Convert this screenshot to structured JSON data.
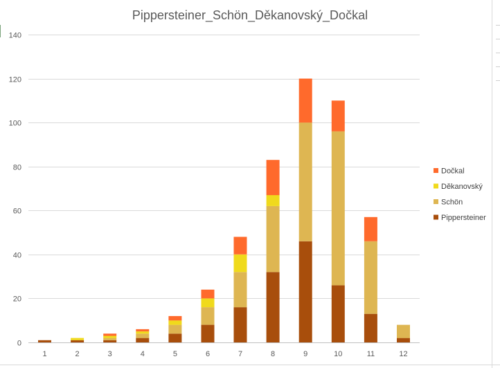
{
  "chart_data": {
    "type": "bar",
    "stacked": true,
    "title": "Pippersteiner_Schön_Děkanovský_Dočkal",
    "xlabel": "",
    "ylabel": "",
    "categories": [
      "1",
      "2",
      "3",
      "4",
      "5",
      "6",
      "7",
      "8",
      "9",
      "10",
      "11",
      "12"
    ],
    "y_ticks": [
      "0",
      "20",
      "40",
      "60",
      "80",
      "100",
      "120",
      "140"
    ],
    "ylim": [
      0,
      140
    ],
    "grid": true,
    "legend_position": "right",
    "series": [
      {
        "name": "Pippersteiner",
        "color": "#A84E0C",
        "values": [
          1,
          1,
          1,
          2,
          4,
          8,
          16,
          32,
          46,
          26,
          13,
          2
        ]
      },
      {
        "name": "Schön",
        "color": "#DEB652",
        "values": [
          0,
          0,
          1,
          2,
          4,
          8,
          16,
          30,
          54,
          70,
          33,
          6
        ]
      },
      {
        "name": "Děkanovský",
        "color": "#F0DA1C",
        "values": [
          0,
          1,
          1,
          1,
          2,
          4,
          8,
          5,
          0,
          0,
          0,
          0
        ]
      },
      {
        "name": "Dočkal",
        "color": "#FF6A2C",
        "values": [
          0,
          0,
          1,
          1,
          2,
          4,
          8,
          16,
          20,
          14,
          11,
          0
        ]
      }
    ]
  }
}
